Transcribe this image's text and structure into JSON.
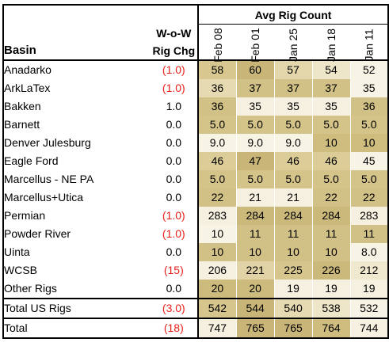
{
  "header": {
    "group_label": "Avg Rig Count",
    "basin_label": "Basin",
    "chg_label_line1": "W-o-W",
    "chg_label_line2": "Rig Chg",
    "months": [
      "Feb 08",
      "Feb 01",
      "Jan 25",
      "Jan 18",
      "Jan 11"
    ]
  },
  "rows": [
    {
      "basin": "Anadarko",
      "chg": "(1.0)",
      "negative": true,
      "values": [
        "58",
        "60",
        "57",
        "54",
        "52"
      ]
    },
    {
      "basin": "ArkLaTex",
      "chg": "(1.0)",
      "negative": true,
      "values": [
        "36",
        "37",
        "37",
        "37",
        "35"
      ]
    },
    {
      "basin": "Bakken",
      "chg": "1.0",
      "negative": false,
      "values": [
        "36",
        "35",
        "35",
        "35",
        "36"
      ]
    },
    {
      "basin": "Barnett",
      "chg": "0.0",
      "negative": false,
      "values": [
        "5.0",
        "5.0",
        "5.0",
        "5.0",
        "5.0"
      ]
    },
    {
      "basin": "Denver Julesburg",
      "chg": "0.0",
      "negative": false,
      "values": [
        "9.0",
        "9.0",
        "9.0",
        "10",
        "10"
      ]
    },
    {
      "basin": "Eagle Ford",
      "chg": "0.0",
      "negative": false,
      "values": [
        "46",
        "47",
        "46",
        "46",
        "45"
      ]
    },
    {
      "basin": "Marcellus - NE PA",
      "chg": "0.0",
      "negative": false,
      "values": [
        "5.0",
        "5.0",
        "5.0",
        "5.0",
        "5.0"
      ]
    },
    {
      "basin": "Marcellus+Utica",
      "chg": "0.0",
      "negative": false,
      "values": [
        "22",
        "21",
        "21",
        "22",
        "22"
      ]
    },
    {
      "basin": "Permian",
      "chg": "(1.0)",
      "negative": true,
      "values": [
        "283",
        "284",
        "284",
        "284",
        "283"
      ]
    },
    {
      "basin": "Powder River",
      "chg": "(1.0)",
      "negative": true,
      "values": [
        "10",
        "11",
        "11",
        "11",
        "11"
      ]
    },
    {
      "basin": "Uinta",
      "chg": "0.0",
      "negative": false,
      "values": [
        "10",
        "10",
        "10",
        "10",
        "8.0"
      ]
    },
    {
      "basin": "WCSB",
      "chg": "(15)",
      "negative": true,
      "values": [
        "206",
        "221",
        "225",
        "226",
        "212"
      ]
    },
    {
      "basin": "Other Rigs",
      "chg": "0.0",
      "negative": false,
      "values": [
        "20",
        "20",
        "19",
        "19",
        "19"
      ]
    }
  ],
  "totals": [
    {
      "basin": "Total US Rigs",
      "chg": "(3.0)",
      "negative": true,
      "values": [
        "542",
        "544",
        "540",
        "538",
        "532"
      ]
    },
    {
      "basin": "Total",
      "chg": "(18)",
      "negative": true,
      "values": [
        "747",
        "765",
        "765",
        "764",
        "744"
      ]
    }
  ],
  "cell_colors": [
    [
      "#d8c890",
      "#c9b577",
      "#e3d6ab",
      "#eee6c8",
      "#f7f3e5"
    ],
    [
      "#e6dab3",
      "#d2c186",
      "#d2c186",
      "#d2c186",
      "#f7f3e5"
    ],
    [
      "#d2c186",
      "#f5f0e0",
      "#f5f0e0",
      "#f5f0e0",
      "#d2c186"
    ],
    [
      "#d4c48a",
      "#d4c48a",
      "#d4c48a",
      "#d4c48a",
      "#d4c48a"
    ],
    [
      "#f7f3e5",
      "#f7f3e5",
      "#f7f3e5",
      "#cfbd80",
      "#cfbd80"
    ],
    [
      "#dccd98",
      "#c9b577",
      "#dccd98",
      "#dccd98",
      "#f7f3e5"
    ],
    [
      "#d4c48a",
      "#d4c48a",
      "#d4c48a",
      "#d4c48a",
      "#d4c48a"
    ],
    [
      "#d2c186",
      "#f5f0e0",
      "#f5f0e0",
      "#d2c186",
      "#d2c186"
    ],
    [
      "#f5f0e0",
      "#cbb87b",
      "#cbb87b",
      "#cbb87b",
      "#f5f0e0"
    ],
    [
      "#f7f3e5",
      "#d2c186",
      "#d2c186",
      "#d2c186",
      "#d2c186"
    ],
    [
      "#d2c186",
      "#d2c186",
      "#d2c186",
      "#d2c186",
      "#f7f3e5"
    ],
    [
      "#f5f0e0",
      "#e1d3a5",
      "#d6c68e",
      "#cbb87b",
      "#f0e9cf"
    ],
    [
      "#cdbb7e",
      "#cdbb7e",
      "#f5f0e0",
      "#f5f0e0",
      "#f5f0e0"
    ],
    [
      "#d6c68e",
      "#c9b577",
      "#e6dab3",
      "#eee6c8",
      "#f7f3e5"
    ],
    [
      "#f5f0e0",
      "#c9b577",
      "#c9b577",
      "#cfbd80",
      "#f5f0e0"
    ]
  ],
  "colors": {
    "negative": "#e8201c"
  }
}
